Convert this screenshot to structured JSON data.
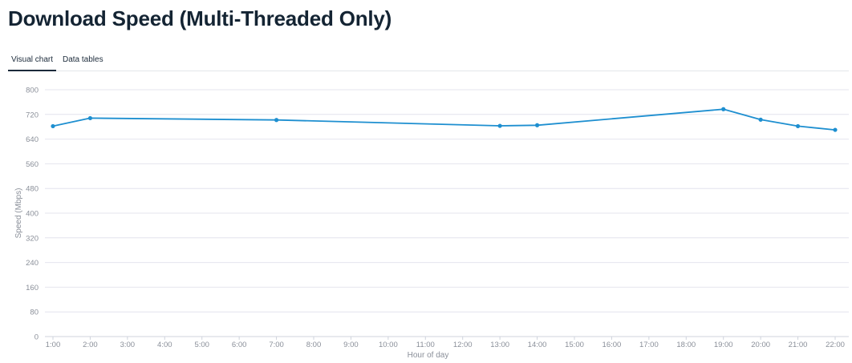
{
  "page": {
    "title": "Download Speed (Multi-Threaded Only)"
  },
  "tabs": [
    {
      "label": "Visual chart",
      "active": true
    },
    {
      "label": "Data tables",
      "active": false
    }
  ],
  "colors": {
    "line": "#1e8fd0",
    "grid": "#e4e4ee",
    "axis_text": "#8a8f99"
  },
  "chart_data": {
    "type": "line",
    "xlabel": "Hour of day",
    "ylabel": "Speed (Mbps)",
    "ylim": [
      0,
      800
    ],
    "yticks": [
      0,
      80,
      160,
      240,
      320,
      400,
      480,
      560,
      640,
      720,
      800
    ],
    "categories": [
      "1:00",
      "2:00",
      "3:00",
      "4:00",
      "5:00",
      "6:00",
      "7:00",
      "8:00",
      "9:00",
      "10:00",
      "11:00",
      "12:00",
      "13:00",
      "14:00",
      "15:00",
      "16:00",
      "17:00",
      "18:00",
      "19:00",
      "20:00",
      "21:00",
      "22:00"
    ],
    "grid": true,
    "legend": "none",
    "series": [
      {
        "points": [
          {
            "x": "1:00",
            "y": 682
          },
          {
            "x": "2:00",
            "y": 708
          },
          {
            "x": "7:00",
            "y": 702
          },
          {
            "x": "13:00",
            "y": 683
          },
          {
            "x": "14:00",
            "y": 685
          },
          {
            "x": "19:00",
            "y": 737
          },
          {
            "x": "20:00",
            "y": 703
          },
          {
            "x": "21:00",
            "y": 682
          },
          {
            "x": "22:00",
            "y": 670
          }
        ]
      }
    ]
  }
}
